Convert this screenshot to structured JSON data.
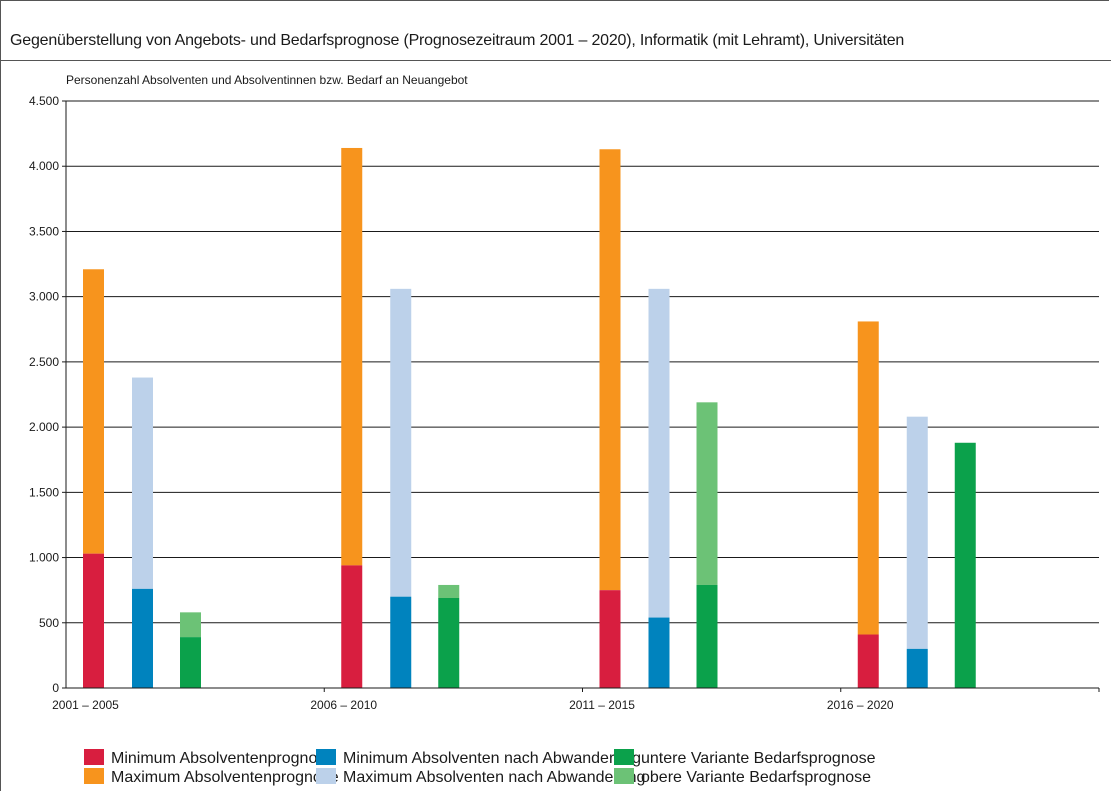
{
  "title": "Gegenüberstellung von Angebots- und Bedarfsprognose (Prognosezeitraum 2001 – 2020), Informatik (mit Lehramt), Universitäten",
  "chart_data": {
    "type": "bar",
    "ylabel": "Personenzahl Absolventen und Absolventinnen bzw. Bedarf an Neuangebot",
    "ylim": [
      0,
      4500
    ],
    "yticks": [
      0,
      500,
      1000,
      1500,
      2000,
      2500,
      3000,
      3500,
      4000,
      4500
    ],
    "ytick_labels": [
      "0",
      "500",
      "1.000",
      "1.500",
      "2.000",
      "2.500",
      "3.000",
      "3.500",
      "4.000",
      "4.500"
    ],
    "grid": true,
    "legend_position": "bottom",
    "categories": [
      "2001 – 2005",
      "2006 – 2010",
      "2011 – 2015",
      "2016 – 2020"
    ],
    "groups": [
      {
        "name": "Absolventenprognose",
        "min_series": "Minimum Absolventenprognose",
        "max_series": "Maximum Absolventenprognose"
      },
      {
        "name": "Absolventen nach Abwanderung",
        "min_series": "Minimum Absolventen nach Abwanderung",
        "max_series": "Maximum Absolventen nach Abwanderung"
      },
      {
        "name": "Bedarfsprognose",
        "min_series": "untere Variante Bedarfsprognose",
        "max_series": "obere Variante Bedarfsprognose"
      }
    ],
    "series": [
      {
        "name": "Minimum Absolventenprognose",
        "color": "#d81e3f",
        "values": [
          1030,
          940,
          750,
          410
        ]
      },
      {
        "name": "Maximum Absolventenprognose",
        "color": "#f7941d",
        "values": [
          3210,
          4140,
          4130,
          2810
        ]
      },
      {
        "name": "Minimum Absolventen nach Abwanderung",
        "color": "#0083be",
        "values": [
          760,
          700,
          540,
          300
        ]
      },
      {
        "name": "Maximum Absolventen nach Abwanderung",
        "color": "#bcd1ea",
        "values": [
          2380,
          3060,
          3060,
          2080
        ]
      },
      {
        "name": "untere Variante Bedarfsprognose",
        "color": "#0ba14b",
        "values": [
          390,
          690,
          790,
          1880
        ]
      },
      {
        "name": "obere Variante Bedarfsprognose",
        "color": "#6cc276",
        "values": [
          580,
          790,
          2190,
          1880
        ]
      }
    ]
  },
  "legend": [
    {
      "label": "Minimum Absolventenprognose",
      "color": "#d81e3f"
    },
    {
      "label": "Maximum Absolventenprognose",
      "color": "#f7941d"
    },
    {
      "label": "Minimum Absolventen nach Abwanderung",
      "color": "#0083be"
    },
    {
      "label": "Maximum Absolventen nach Abwanderung",
      "color": "#bcd1ea"
    },
    {
      "label": "untere Variante Bedarfsprognose",
      "color": "#0ba14b"
    },
    {
      "label": "obere Variante Bedarfsprognose",
      "color": "#6cc276"
    }
  ]
}
